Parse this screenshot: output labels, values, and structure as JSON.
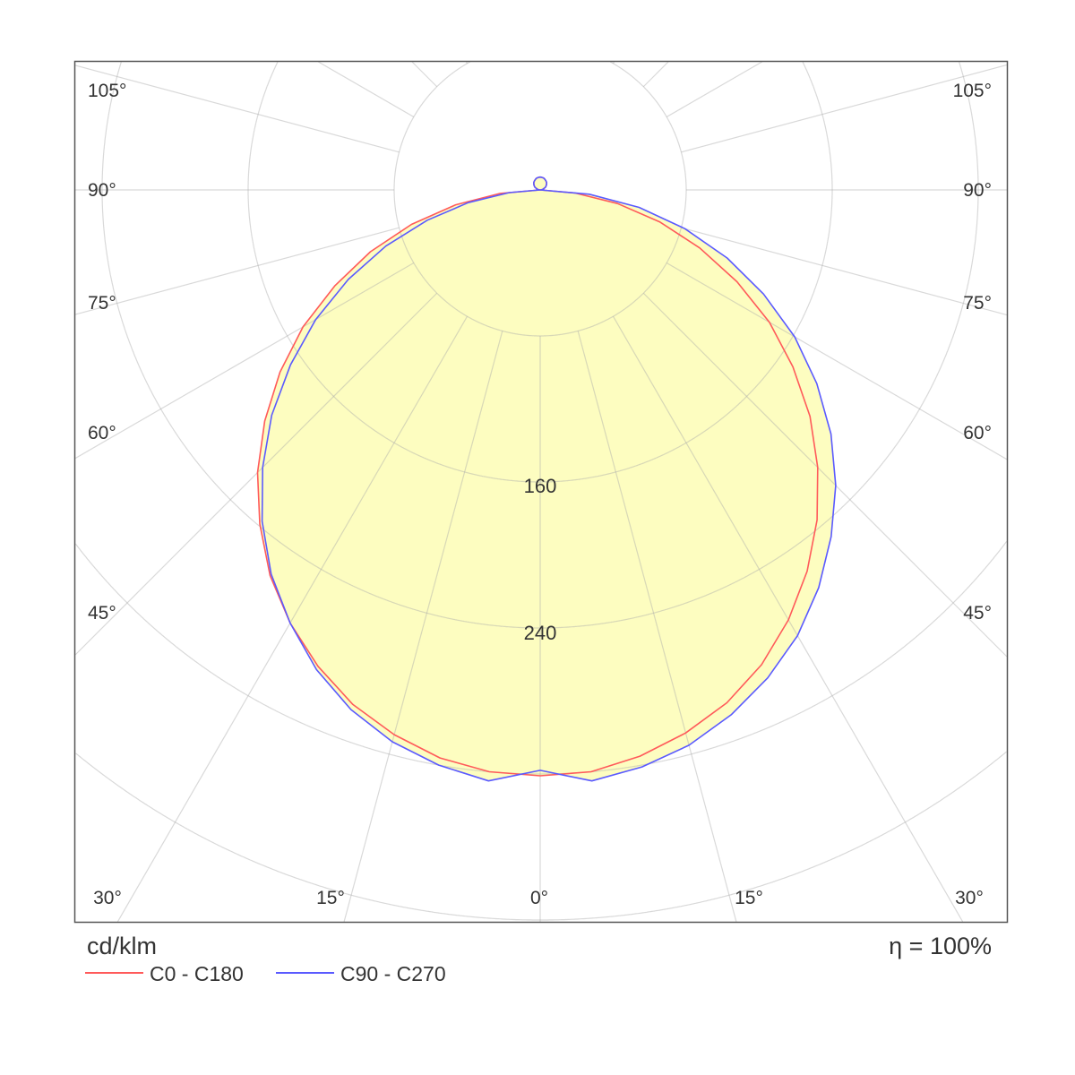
{
  "chart_data": {
    "type": "polar",
    "unit_label": "cd/klm",
    "efficiency_label": "η = 100%",
    "radial_ticks": [
      80,
      160,
      240,
      320,
      400,
      480,
      560
    ],
    "radial_tick_labels": [
      "160",
      "240"
    ],
    "radial_tick_label_values": [
      160,
      240
    ],
    "angle_labels_left": [
      "105°",
      "90°",
      "75°",
      "60°",
      "45°"
    ],
    "angle_labels_right": [
      "105°",
      "90°",
      "75°",
      "60°",
      "45°"
    ],
    "angle_labels_bottom": [
      "30°",
      "15°",
      "0°",
      "15°",
      "30°"
    ],
    "grid": true,
    "legend_position": "bottom-left",
    "fill_color": "#fdfdc0",
    "angles": [
      0,
      5,
      10,
      15,
      20,
      25,
      30,
      35,
      40,
      45,
      50,
      55,
      60,
      65,
      70,
      75,
      80,
      85,
      90,
      95,
      100,
      105,
      110,
      115,
      120,
      125,
      130,
      135,
      140,
      145,
      150,
      155,
      160,
      165,
      170,
      175,
      180
    ],
    "series": [
      {
        "name": "C0 - C180",
        "color": "#ff5a5a",
        "right_values": [
          321,
          320,
          315,
          308,
          299,
          287,
          272,
          255,
          236,
          215,
          193,
          169,
          145,
          119,
          93,
          68,
          43,
          19,
          0,
          1,
          1,
          2,
          2,
          3,
          3.5,
          4,
          4.5,
          5,
          5.4,
          5.7,
          6,
          6.3,
          6.6,
          6.8,
          6.9,
          7,
          7
        ],
        "left_values": [
          321,
          320,
          316,
          309,
          300,
          288,
          274,
          258,
          239,
          219,
          197,
          174,
          150,
          124,
          99,
          73,
          47,
          22,
          0,
          1,
          1,
          2,
          2,
          3,
          3.5,
          4,
          4.5,
          5,
          5.4,
          5.7,
          6,
          6.3,
          6.6,
          6.8,
          6.9,
          7,
          7
        ]
      },
      {
        "name": "C90 - C270",
        "color": "#5a5aff",
        "right_values": [
          318,
          325,
          321,
          315,
          306,
          295,
          282,
          266,
          248,
          229,
          208,
          185,
          161,
          135,
          109,
          82,
          55,
          27,
          0,
          1,
          1,
          2,
          2,
          3,
          3.5,
          4,
          4.5,
          5,
          5.4,
          5.7,
          6,
          6.3,
          6.6,
          6.8,
          6.9,
          7,
          7
        ],
        "left_values": [
          318,
          325,
          320,
          313,
          303,
          290,
          274,
          257,
          237,
          215,
          192,
          167,
          142,
          116,
          90,
          64,
          40,
          17,
          0,
          1,
          1,
          2,
          2,
          3,
          3.5,
          4,
          4.5,
          5,
          5.4,
          5.7,
          6,
          6.3,
          6.6,
          6.8,
          6.9,
          7,
          7
        ]
      }
    ]
  }
}
